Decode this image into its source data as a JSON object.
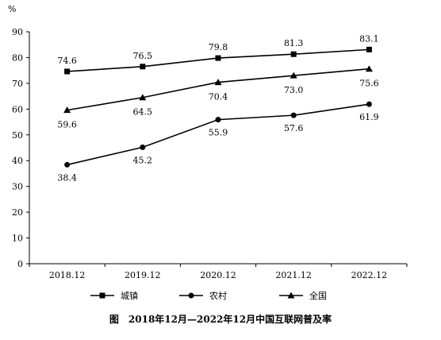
{
  "chart_data": {
    "type": "line",
    "title": "图　2018年12月—2022年12月中国互联网普及率",
    "ylabel": "%",
    "xlabel": "",
    "categories": [
      "2018.12",
      "2019.12",
      "2020.12",
      "2021.12",
      "2022.12"
    ],
    "ylim": [
      0,
      90
    ],
    "yticks": [
      0,
      10,
      20,
      30,
      40,
      50,
      60,
      70,
      80,
      90
    ],
    "grid": false,
    "legend_position": "bottom",
    "series": [
      {
        "name": "城镇",
        "marker": "square",
        "values": [
          74.6,
          76.5,
          79.8,
          81.3,
          83.1
        ],
        "labels": [
          "74.6",
          "76.5",
          "79.8",
          "81.3",
          "83.1"
        ]
      },
      {
        "name": "农村",
        "marker": "circle",
        "values": [
          38.4,
          45.2,
          55.9,
          57.6,
          61.9
        ],
        "labels": [
          "38.4",
          "45.2",
          "55.9",
          "57.6",
          "61.9"
        ]
      },
      {
        "name": "全国",
        "marker": "triangle",
        "values": [
          59.6,
          64.5,
          70.4,
          73.0,
          75.6
        ],
        "labels": [
          "59.6",
          "64.5",
          "70.4",
          "73.0",
          "75.6"
        ]
      }
    ]
  }
}
